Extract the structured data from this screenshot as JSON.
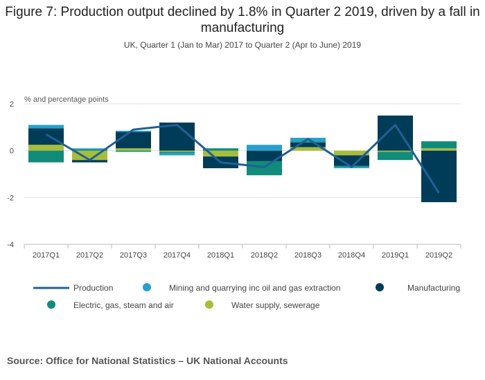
{
  "title": "Figure 7: Production output declined by 1.8% in Quarter 2 2019, driven by a fall in manufacturing",
  "subtitle": "UK, Quarter 1 (Jan to Mar) 2017 to Quarter 2 (Apr to June) 2019",
  "source": "Source: Office for National Statistics – UK National Accounts",
  "colors": {
    "mining": "#27a0cc",
    "manufacturing": "#003c57",
    "electric": "#118c7b",
    "water": "#a8bd3a",
    "production": "#206095"
  },
  "chart_data": {
    "type": "bar",
    "stacked": true,
    "ylabel": "% and percentage points",
    "ylim": [
      -4,
      2
    ],
    "yticks": [
      2,
      0,
      -2,
      -4
    ],
    "categories": [
      "2017Q1",
      "2017Q2",
      "2017Q3",
      "2017Q4",
      "2018Q1",
      "2018Q2",
      "2018Q3",
      "2018Q4",
      "2019Q1",
      "2019Q2"
    ],
    "series": [
      {
        "key": "water",
        "name": "Water supply, sewerage",
        "values": [
          0.25,
          -0.4,
          0.1,
          -0.05,
          -0.25,
          0.0,
          0.15,
          -0.2,
          -0.05,
          0.1
        ]
      },
      {
        "key": "manufacturing",
        "name": "Manufacturing",
        "values": [
          0.7,
          -0.1,
          0.7,
          1.2,
          -0.5,
          -0.45,
          0.2,
          -0.45,
          1.5,
          -2.2
        ]
      },
      {
        "key": "electric",
        "name": "Electric, gas, steam and air",
        "values": [
          -0.5,
          0.05,
          -0.05,
          -0.05,
          0.1,
          -0.6,
          0.05,
          -0.05,
          -0.35,
          0.3
        ]
      },
      {
        "key": "mining",
        "name": "Mining and quarrying inc oil and gas extraction",
        "values": [
          0.15,
          0.05,
          0.05,
          -0.1,
          0.0,
          0.25,
          0.15,
          -0.05,
          0.0,
          0.0
        ]
      }
    ],
    "line": {
      "key": "production",
      "name": "Production",
      "values": [
        0.7,
        -0.4,
        0.9,
        1.1,
        -0.5,
        -0.7,
        0.5,
        -0.7,
        1.1,
        -1.8
      ]
    },
    "legend": [
      {
        "key": "production",
        "label": "Production",
        "shape": "line"
      },
      {
        "key": "mining",
        "label": "Mining and quarrying inc oil and gas extraction",
        "shape": "dot"
      },
      {
        "key": "manufacturing",
        "label": "Manufacturing",
        "shape": "dot"
      },
      {
        "key": "electric",
        "label": "Electric, gas, steam and air",
        "shape": "dot"
      },
      {
        "key": "water",
        "label": "Water supply, sewerage",
        "shape": "dot"
      }
    ],
    "legend_position": "bottom"
  }
}
